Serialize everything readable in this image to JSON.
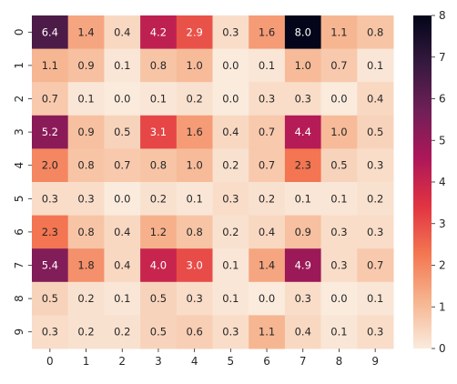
{
  "chart_data": {
    "type": "heatmap",
    "title": "",
    "xlabel": "",
    "ylabel": "",
    "x_categories": [
      "0",
      "1",
      "2",
      "3",
      "4",
      "5",
      "6",
      "7",
      "8",
      "9"
    ],
    "y_categories": [
      "0",
      "1",
      "2",
      "3",
      "4",
      "5",
      "6",
      "7",
      "8",
      "9"
    ],
    "values": [
      [
        6.4,
        1.4,
        0.4,
        4.2,
        2.9,
        0.3,
        1.6,
        8.0,
        1.1,
        0.8
      ],
      [
        1.1,
        0.9,
        0.1,
        0.8,
        1.0,
        0.0,
        0.1,
        1.0,
        0.7,
        0.1
      ],
      [
        0.7,
        0.1,
        0.0,
        0.1,
        0.2,
        0.0,
        0.3,
        0.3,
        0.0,
        0.4
      ],
      [
        5.2,
        0.9,
        0.5,
        3.1,
        1.6,
        0.4,
        0.7,
        4.4,
        1.0,
        0.5
      ],
      [
        2.0,
        0.8,
        0.7,
        0.8,
        1.0,
        0.2,
        0.7,
        2.3,
        0.5,
        0.3
      ],
      [
        0.3,
        0.3,
        0.0,
        0.2,
        0.1,
        0.3,
        0.2,
        0.1,
        0.1,
        0.2
      ],
      [
        2.3,
        0.8,
        0.4,
        1.2,
        0.8,
        0.2,
        0.4,
        0.9,
        0.3,
        0.3
      ],
      [
        5.4,
        1.8,
        0.4,
        4.0,
        3.0,
        0.1,
        1.4,
        4.9,
        0.3,
        0.7
      ],
      [
        0.5,
        0.2,
        0.1,
        0.5,
        0.3,
        0.1,
        0.0,
        0.3,
        0.0,
        0.1
      ],
      [
        0.3,
        0.2,
        0.2,
        0.5,
        0.6,
        0.3,
        1.1,
        0.4,
        0.1,
        0.3
      ]
    ],
    "value_format": "0.1f",
    "vmin": 0,
    "vmax": 8,
    "colormap": "rocket_r",
    "colorbar_ticks": [
      "0",
      "1",
      "2",
      "3",
      "4",
      "5",
      "6",
      "7",
      "8"
    ],
    "colormap_stops": [
      "#faebdd",
      "#f6b48f",
      "#f37651",
      "#e13342",
      "#ad1759",
      "#701f57",
      "#35193e",
      "#03051a"
    ],
    "grid": false,
    "colorbar_position": "right"
  }
}
